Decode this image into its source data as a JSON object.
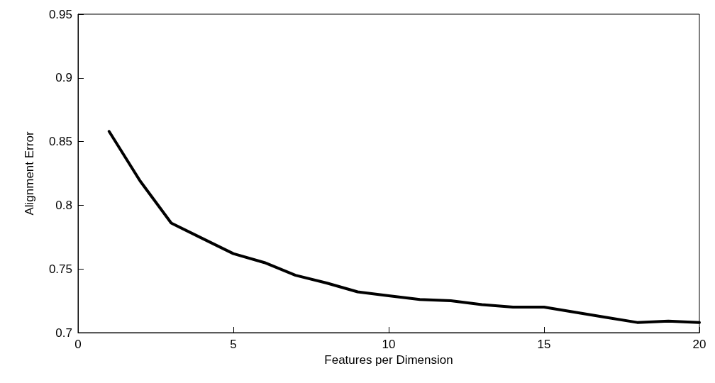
{
  "chart_data": {
    "type": "line",
    "xlabel": "Features per Dimension",
    "ylabel": "Alignment Error",
    "x": [
      1,
      2,
      3,
      4,
      5,
      6,
      7,
      8,
      9,
      10,
      11,
      12,
      13,
      14,
      15,
      16,
      17,
      18,
      19,
      20
    ],
    "series": [
      {
        "color": "#000000",
        "values": [
          0.858,
          0.819,
          0.786,
          0.774,
          0.762,
          0.755,
          0.745,
          0.739,
          0.732,
          0.729,
          0.726,
          0.725,
          0.722,
          0.72,
          0.72,
          0.716,
          0.712,
          0.708,
          0.709,
          0.708
        ]
      }
    ],
    "xlim": [
      0,
      20
    ],
    "xticks": [
      0,
      5,
      10,
      15,
      20
    ],
    "ylim": [
      0.7,
      0.95
    ],
    "yticks": [
      0.7,
      0.75,
      0.8,
      0.85,
      0.9,
      0.95
    ],
    "grid": false,
    "marker": "none",
    "line_style": "solid"
  }
}
